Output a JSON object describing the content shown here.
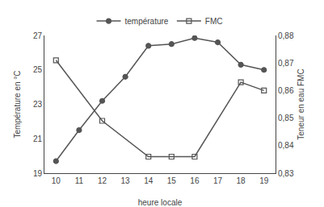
{
  "chart_data": {
    "type": "line",
    "x_label": "heure locale",
    "y_label": "Température en °C",
    "y2_label": "Teneur en eau FMC",
    "series": [
      {
        "name": "température",
        "color": "#555555",
        "marker": "circle",
        "line_style": "solid",
        "x": [
          10,
          11,
          12,
          13,
          14,
          15,
          16,
          17,
          18,
          19
        ],
        "values": [
          19.7,
          21.5,
          23.2,
          24.6,
          26.4,
          26.5,
          26.85,
          26.6,
          25.3,
          25.0
        ]
      },
      {
        "name": "FMC",
        "color": "#555555",
        "marker": "square-open",
        "line_style": "solid",
        "axis": "y2",
        "x": [
          10,
          12,
          14,
          15,
          16,
          18,
          19
        ],
        "values": [
          0.871,
          0.849,
          0.836,
          0.836,
          0.836,
          0.863,
          0.86
        ]
      }
    ],
    "xlim": [
      9.5,
      19.5
    ],
    "xticks": [
      10,
      11,
      12,
      13,
      14,
      15,
      16,
      17,
      18,
      19
    ],
    "ylim": [
      19,
      27
    ],
    "yticks": [
      19,
      21,
      23,
      25,
      27
    ],
    "y2lim": [
      0.83,
      0.88
    ],
    "y2ticks": [
      {
        "value": 0.83,
        "label": "0,83"
      },
      {
        "value": 0.84,
        "label": "0,84"
      },
      {
        "value": 0.85,
        "label": "0,85"
      },
      {
        "value": 0.86,
        "label": "0,86"
      },
      {
        "value": 0.87,
        "label": "0,87"
      },
      {
        "value": 0.88,
        "label": "0,88"
      }
    ],
    "grid": false,
    "legend": "top"
  }
}
